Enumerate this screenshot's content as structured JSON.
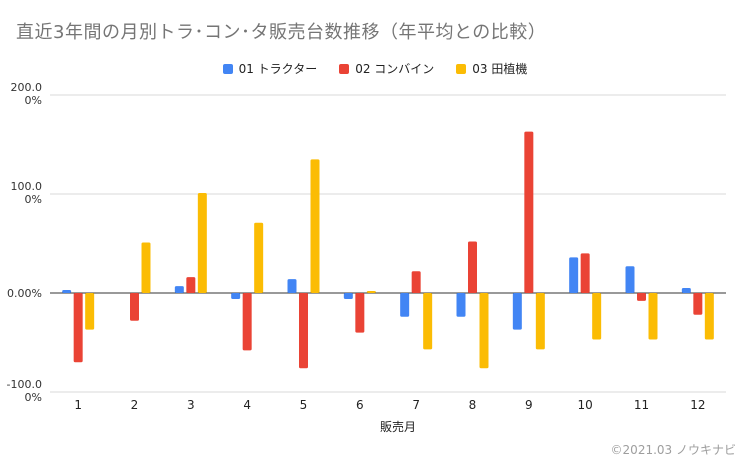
{
  "chart_data": {
    "type": "bar",
    "title": "直近3年間の月別トラ･コン･タ販売台数推移（年平均との比較）",
    "xlabel": "販売月",
    "ylabel": "",
    "categories": [
      "1",
      "2",
      "3",
      "4",
      "5",
      "6",
      "7",
      "8",
      "9",
      "10",
      "11",
      "12"
    ],
    "series": [
      {
        "name": "01 トラクター",
        "color": "#4285f4",
        "values": [
          3,
          0,
          7,
          -6,
          14,
          -6,
          -24,
          -24,
          -37,
          36,
          27,
          5
        ]
      },
      {
        "name": "02 コンバイン",
        "color": "#ea4335",
        "values": [
          -70,
          -28,
          16,
          -58,
          -76,
          -40,
          22,
          52,
          163,
          40,
          -8,
          -22
        ]
      },
      {
        "name": "03 田植機",
        "color": "#fbbc04",
        "values": [
          -37,
          51,
          101,
          71,
          135,
          2,
          -57,
          -76,
          -57,
          -47,
          -47,
          -47
        ]
      }
    ],
    "ylim": [
      -100,
      200
    ],
    "yticks": [
      {
        "value": 200,
        "lines": [
          "200.0",
          "0%"
        ]
      },
      {
        "value": 100,
        "lines": [
          "100.0",
          "0%"
        ]
      },
      {
        "value": 0,
        "lines": [
          "0.00%"
        ]
      },
      {
        "value": -100,
        "lines": [
          "-100.0",
          "0%"
        ]
      }
    ],
    "grid": true,
    "legend_position": "top"
  },
  "footer": {
    "copyright": "©2021.03 ノウキナビ"
  }
}
